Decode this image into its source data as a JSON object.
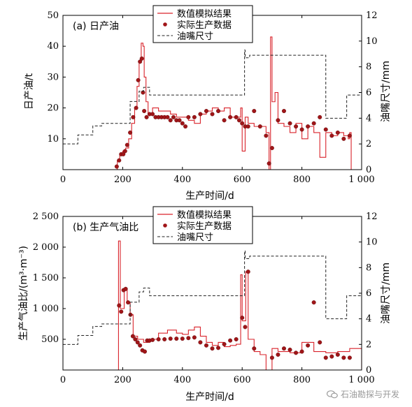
{
  "chart_data": [
    {
      "type": "line",
      "title": "(a) 日产油",
      "xlabel": "生产时间/d",
      "ylabel": "日产油/t",
      "y2label": "油嘴尺寸/mm",
      "xlim": [
        0,
        1000
      ],
      "ylim": [
        0,
        50
      ],
      "y2lim": [
        0,
        12
      ],
      "x_ticks": [
        0,
        200,
        400,
        600,
        800,
        1000
      ],
      "x_tick_labels": [
        "0",
        "200",
        "400",
        "600",
        "800",
        "1 000"
      ],
      "y_ticks": [
        10,
        20,
        30,
        40,
        50
      ],
      "y2_ticks": [
        0,
        2,
        4,
        6,
        8,
        10,
        12
      ],
      "legend": [
        "数值模拟结果",
        "实际生产数据",
        "油嘴尺寸"
      ],
      "legend_position": "top-center",
      "colors": {
        "simulation": "#d9232b",
        "actual": "#a01518",
        "choke": "#222222"
      },
      "series": [
        {
          "name": "数值模拟结果",
          "axis": "left",
          "style": "step",
          "x": [
            0,
            178,
            182,
            190,
            200,
            210,
            220,
            230,
            240,
            248,
            255,
            262,
            268,
            272,
            278,
            285,
            300,
            320,
            340,
            360,
            380,
            400,
            420,
            440,
            460,
            480,
            500,
            520,
            540,
            560,
            580,
            595,
            600,
            610,
            620,
            640,
            660,
            680,
            690,
            695,
            700,
            710,
            720,
            740,
            760,
            780,
            800,
            820,
            840,
            860,
            880,
            900,
            920,
            940,
            955,
            960,
            965,
            1000
          ],
          "y": [
            0,
            0,
            3,
            5,
            6,
            7,
            10,
            15,
            20,
            27,
            35,
            41,
            40,
            30,
            22,
            18,
            20,
            19,
            19,
            18,
            17,
            17,
            16,
            15,
            18,
            19,
            20,
            19,
            20,
            17,
            17,
            20,
            6,
            17,
            15,
            14,
            14,
            12,
            0,
            43,
            22,
            25,
            15,
            14,
            12,
            15,
            10,
            14,
            12,
            4,
            12,
            11,
            12,
            11,
            10,
            12,
            0,
            0
          ]
        },
        {
          "name": "实际生产数据",
          "axis": "left",
          "style": "marker",
          "x": [
            180,
            188,
            195,
            202,
            208,
            215,
            225,
            235,
            245,
            252,
            258,
            264,
            268,
            272,
            280,
            290,
            300,
            310,
            320,
            330,
            340,
            350,
            360,
            370,
            380,
            390,
            400,
            410,
            420,
            440,
            460,
            480,
            500,
            520,
            540,
            560,
            580,
            590,
            600,
            610,
            620,
            640,
            660,
            680,
            690,
            700,
            720,
            740,
            760,
            780,
            800,
            820,
            840,
            860,
            880,
            900,
            920,
            940,
            960
          ],
          "y": [
            1,
            3,
            5,
            5,
            6,
            8,
            12,
            17,
            20,
            29,
            35,
            36,
            25,
            19,
            17,
            18,
            18,
            17,
            17,
            17,
            17,
            17,
            16,
            17,
            16,
            16,
            15,
            14,
            17,
            17,
            18,
            19,
            18,
            19,
            16,
            17,
            17,
            16,
            15,
            14,
            14,
            19,
            14,
            11,
            2,
            7,
            16,
            19,
            15,
            14,
            13,
            14,
            15,
            17,
            13,
            11,
            12,
            10,
            11
          ]
        },
        {
          "name": "油嘴尺寸",
          "axis": "right",
          "style": "dashed-step",
          "x": [
            0,
            50,
            100,
            130,
            225,
            255,
            270,
            290,
            600,
            608,
            610,
            625,
            800,
            880,
            950,
            1000
          ],
          "y": [
            2,
            2.7,
            3.4,
            3.6,
            5.3,
            6.1,
            6.4,
            5.8,
            5.8,
            9.3,
            8.7,
            8.9,
            8.9,
            4,
            5.8,
            5.8
          ]
        }
      ]
    },
    {
      "type": "line",
      "title": "(b) 生产气油比",
      "xlabel": "生产时间/d",
      "ylabel": "生产气油比/(m³·m⁻³)",
      "y2label": "油嘴尺寸/mm",
      "xlim": [
        0,
        1000
      ],
      "ylim": [
        0,
        2500
      ],
      "y2lim": [
        0,
        12
      ],
      "x_ticks": [
        0,
        200,
        400,
        600,
        800,
        1000
      ],
      "x_tick_labels": [
        "0",
        "200",
        "400",
        "600",
        "800",
        "1 000"
      ],
      "y_ticks": [
        500,
        1000,
        1500,
        2000,
        2500
      ],
      "y_tick_labels": [
        "500",
        "1 000",
        "1 500",
        "2 000",
        "2 500"
      ],
      "y2_ticks": [
        0,
        2,
        4,
        6,
        8,
        10,
        12
      ],
      "legend": [
        "数值模拟结果",
        "实际生产数据",
        "油嘴尺寸"
      ],
      "legend_position": "top-center",
      "colors": {
        "simulation": "#d9232b",
        "actual": "#a01518",
        "choke": "#222222"
      },
      "series": [
        {
          "name": "数值模拟结果",
          "axis": "left",
          "style": "step",
          "x": [
            0,
            180,
            186,
            192,
            205,
            215,
            225,
            235,
            250,
            270,
            290,
            320,
            350,
            380,
            400,
            420,
            440,
            460,
            480,
            500,
            520,
            540,
            560,
            580,
            595,
            600,
            612,
            620,
            640,
            660,
            680,
            700,
            720,
            760,
            800,
            840,
            880,
            920,
            960,
            1000
          ],
          "y": [
            0,
            0,
            2100,
            1000,
            1300,
            1100,
            900,
            550,
            500,
            450,
            500,
            600,
            650,
            600,
            580,
            650,
            700,
            550,
            450,
            400,
            450,
            380,
            400,
            420,
            1550,
            800,
            1600,
            500,
            300,
            250,
            0,
            350,
            300,
            280,
            450,
            300,
            280,
            300,
            350,
            0
          ]
        },
        {
          "name": "实际生产数据",
          "axis": "left",
          "style": "marker",
          "x": [
            188,
            195,
            203,
            210,
            218,
            226,
            234,
            242,
            250,
            258,
            266,
            274,
            282,
            290,
            300,
            320,
            340,
            360,
            380,
            400,
            420,
            440,
            460,
            480,
            500,
            520,
            540,
            560,
            580,
            600,
            610,
            620,
            640,
            700,
            720,
            740,
            760,
            780,
            800,
            820,
            840,
            860,
            880,
            900,
            920,
            940,
            960
          ],
          "y": [
            1050,
            950,
            1300,
            1320,
            1100,
            900,
            550,
            500,
            450,
            400,
            320,
            300,
            480,
            480,
            490,
            500,
            500,
            510,
            510,
            510,
            520,
            530,
            450,
            400,
            350,
            360,
            420,
            480,
            500,
            850,
            700,
            1600,
            350,
            200,
            250,
            350,
            330,
            280,
            300,
            400,
            1100,
            450,
            200,
            220,
            250,
            200,
            200
          ]
        },
        {
          "name": "油嘴尺寸",
          "axis": "right",
          "style": "dashed-step",
          "x": [
            0,
            50,
            100,
            130,
            225,
            255,
            270,
            290,
            600,
            608,
            610,
            625,
            800,
            880,
            950,
            1000
          ],
          "y": [
            2,
            2.7,
            3.4,
            3.6,
            5.3,
            6.1,
            6.4,
            5.8,
            5.8,
            9.3,
            8.7,
            8.9,
            8.9,
            4,
            5.8,
            5.8
          ]
        }
      ]
    }
  ],
  "watermark": {
    "text": "石油勘探与开发",
    "icon": "wechat-logo-icon"
  }
}
